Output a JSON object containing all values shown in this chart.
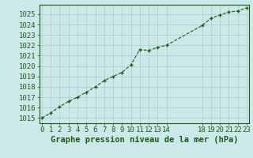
{
  "x": [
    0,
    1,
    2,
    3,
    4,
    5,
    6,
    7,
    8,
    9,
    10,
    11,
    12,
    13,
    14,
    18,
    19,
    20,
    21,
    22,
    23
  ],
  "y": [
    1015.0,
    1015.5,
    1016.1,
    1016.6,
    1017.0,
    1017.5,
    1018.0,
    1018.6,
    1019.0,
    1019.4,
    1020.1,
    1021.6,
    1021.5,
    1021.8,
    1022.0,
    1023.9,
    1024.6,
    1024.9,
    1025.2,
    1025.3,
    1025.6
  ],
  "line_color": "#1a5c1a",
  "marker": "+",
  "bg_color": "#cce8e8",
  "grid_color": "#aacaca",
  "title": "Graphe pression niveau de la mer (hPa)",
  "xlabel_ticks": [
    0,
    1,
    2,
    3,
    4,
    5,
    6,
    7,
    8,
    9,
    10,
    11,
    12,
    13,
    14,
    18,
    19,
    20,
    21,
    22,
    23
  ],
  "ylim": [
    1014.5,
    1025.9
  ],
  "yticks": [
    1015,
    1016,
    1017,
    1018,
    1019,
    1020,
    1021,
    1022,
    1023,
    1024,
    1025
  ],
  "xlim": [
    -0.3,
    23.3
  ],
  "title_fontsize": 7.5,
  "tick_fontsize": 6.5,
  "title_color": "#1a5c1a",
  "tick_color": "#1a5c1a"
}
